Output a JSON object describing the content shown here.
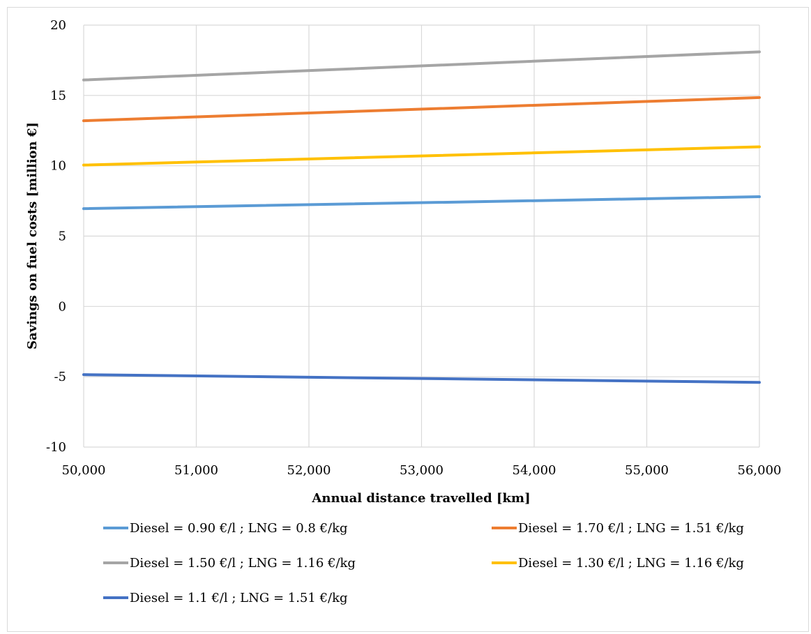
{
  "chart_data": {
    "type": "line",
    "title": "",
    "xlabel": "Annual distance travelled [km]",
    "ylabel": "Savings on fuel costs [million €]",
    "xlim": [
      50000,
      56000
    ],
    "ylim": [
      -10,
      20
    ],
    "x_ticks": [
      "50,000",
      "51,000",
      "52,000",
      "53,000",
      "54,000",
      "55,000",
      "56,000"
    ],
    "y_ticks": [
      "20",
      "15",
      "10",
      "5",
      "0",
      "-5",
      "-10"
    ],
    "grid": true,
    "legend_position": "bottom",
    "x": [
      50000,
      56000
    ],
    "series": [
      {
        "name": "Diesel = 0.90 €/l ; LNG = 0.8 €/kg",
        "color": "#5b9bd5",
        "values": [
          6.95,
          7.8
        ]
      },
      {
        "name": "Diesel = 1.70 €/l ; LNG = 1.51 €/kg",
        "color": "#ed7d31",
        "values": [
          13.2,
          14.85
        ]
      },
      {
        "name": "Diesel = 1.50 €/l ; LNG = 1.16 €/kg",
        "color": "#a5a5a5",
        "values": [
          16.1,
          18.1
        ]
      },
      {
        "name": "Diesel = 1.30 €/l ; LNG = 1.16 €/kg",
        "color": "#ffc000",
        "values": [
          10.05,
          11.35
        ]
      },
      {
        "name": "Diesel = 1.1 €/l ; LNG = 1.51 €/kg",
        "color": "#4472c4",
        "values": [
          -4.85,
          -5.4
        ]
      }
    ]
  }
}
